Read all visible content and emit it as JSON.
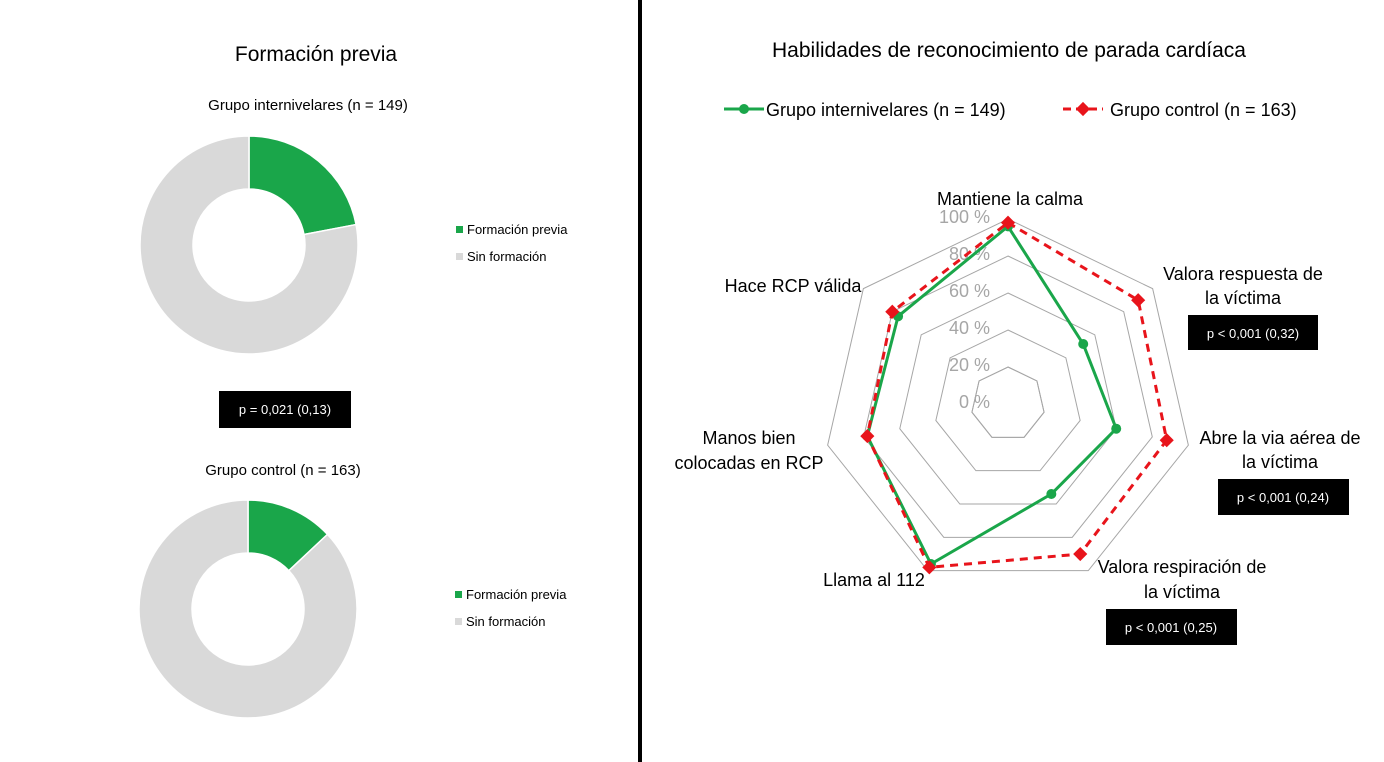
{
  "left_panel": {
    "title": "Formación previa",
    "p_box": "p = 0,021 (0,13)"
  },
  "right_panel": {
    "title": "Habilidades de reconocimiento de parada cardíaca"
  },
  "colors": {
    "green": "#1aa64a",
    "gray": "#d9d9d9",
    "red": "#e8141b",
    "grid": "#a6a6a6",
    "tick": "#a6a6a6",
    "box_bg": "#000000",
    "box_text": "#ffffff",
    "divider": "#000000"
  },
  "chart_data": [
    {
      "type": "pie",
      "donut": true,
      "title": "Grupo internivelares (n = 149)",
      "labels": [
        "Formación previa",
        "Sin formación"
      ],
      "values": [
        22,
        78
      ],
      "legend": "right"
    },
    {
      "type": "pie",
      "donut": true,
      "title": "Grupo control (n = 163)",
      "labels": [
        "Formación previa",
        "Sin formación"
      ],
      "values": [
        13,
        87
      ],
      "legend": "right"
    },
    {
      "type": "radar",
      "title": "Habilidades de reconocimiento de parada cardíaca",
      "categories": [
        "Mantiene la calma",
        "Valora respuesta de la víctima",
        "Abre la via aérea de la víctima",
        "Valora respiración de la víctima",
        "Llama al 112",
        "Manos bien colocadas en RCP",
        "Hace RCP válida"
      ],
      "series": [
        {
          "name": "Grupo internivelares (n = 149)",
          "values": [
            96,
            52,
            60,
            54,
            96,
            78,
            76
          ]
        },
        {
          "name": "Grupo control (n = 163)",
          "values": [
            98,
            90,
            88,
            90,
            98,
            78,
            80
          ]
        }
      ],
      "ticks": [
        "0 %",
        "20 %",
        "40 %",
        "60 %",
        "80 %",
        "100 %"
      ],
      "rlim": [
        0,
        100
      ],
      "legend": "top",
      "annotations": {
        "Valora respuesta de la víctima": "p < 0,001 (0,32)",
        "Abre la via aérea de la víctima": "p < 0,001 (0,24)",
        "Valora respiración de la víctima": "p < 0,001 (0,25)"
      }
    }
  ]
}
